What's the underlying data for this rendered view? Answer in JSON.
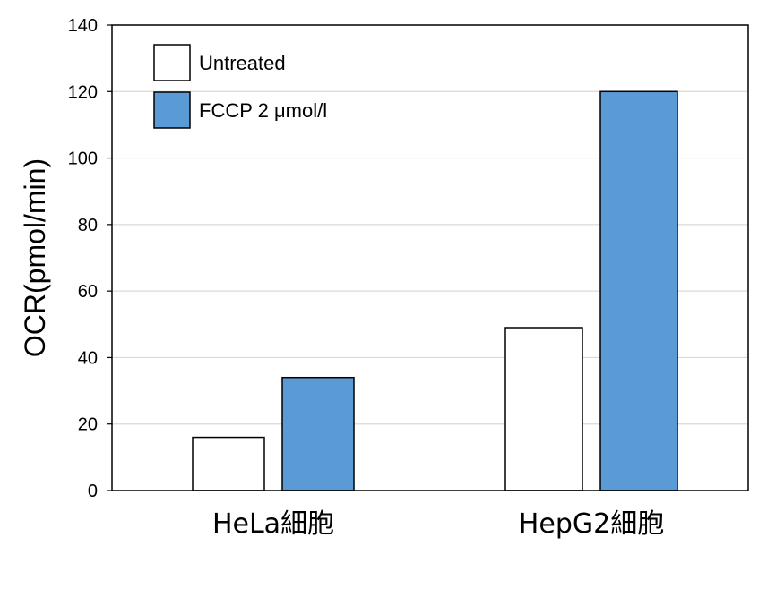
{
  "chart_data": {
    "type": "bar",
    "categories": [
      "HeLa細胞",
      "HepG2細胞"
    ],
    "series": [
      {
        "name": "Untreated",
        "values": [
          16,
          49
        ],
        "color": "#ffffff"
      },
      {
        "name": "FCCP 2 μmol/l",
        "values": [
          34,
          120
        ],
        "color": "#5b9bd5"
      }
    ],
    "ylabel": "OCR(pmol/min)",
    "xlabel": "",
    "ylim": [
      0,
      140
    ],
    "yticks": [
      0,
      20,
      40,
      60,
      80,
      100,
      120,
      140
    ],
    "grid": true,
    "legend_position": "top-left"
  }
}
